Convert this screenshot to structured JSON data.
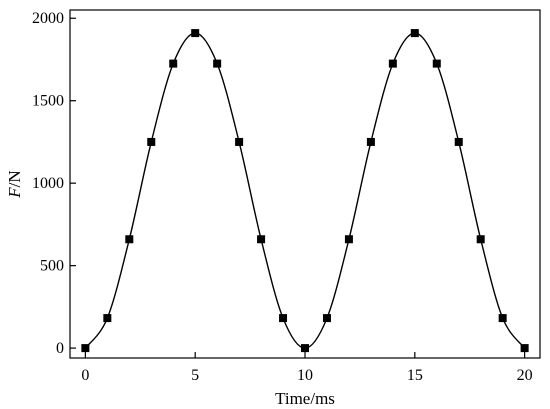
{
  "chart_data": {
    "type": "line",
    "xlabel": "Time/ms",
    "ylabel_italic": "F",
    "ylabel_rest": "/N",
    "xlim": [
      -0.7,
      20.7
    ],
    "ylim": [
      -60,
      2050
    ],
    "xticks": [
      0,
      5,
      10,
      15,
      20
    ],
    "yticks": [
      0,
      500,
      1000,
      1500,
      2000
    ],
    "grid": false,
    "series": [
      {
        "marker": "square",
        "line": "smooth",
        "x": [
          0,
          1,
          2,
          3,
          4,
          5,
          6,
          7,
          8,
          9,
          10,
          11,
          12,
          13,
          14,
          15,
          16,
          17,
          18,
          19,
          20
        ],
        "y": [
          0,
          182,
          660,
          1250,
          1725,
          1910,
          1725,
          1250,
          660,
          182,
          0,
          182,
          660,
          1250,
          1725,
          1910,
          1725,
          1250,
          660,
          182,
          0
        ]
      }
    ]
  }
}
